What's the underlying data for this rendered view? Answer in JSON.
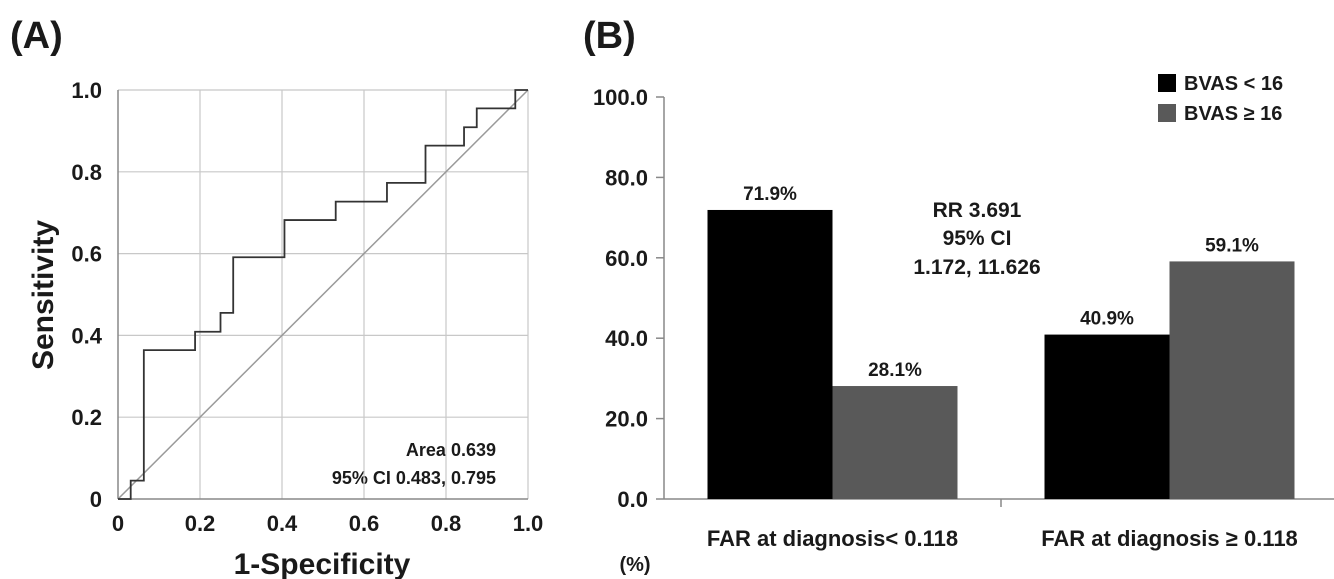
{
  "chart_data": [
    {
      "panel_label": "(A)",
      "type": "line",
      "xlabel": "1-Specificity",
      "ylabel": "Sensitivity",
      "xlim": [
        0,
        1.0
      ],
      "ylim": [
        0,
        1.0
      ],
      "x_ticks": [
        "0",
        "0.2",
        "0.4",
        "0.6",
        "0.8",
        "1.0"
      ],
      "y_ticks": [
        "0",
        "0.2",
        "0.4",
        "0.6",
        "0.8",
        "1.0"
      ],
      "grid": true,
      "series": [
        {
          "points": [
            [
              0,
              0
            ],
            [
              0.031,
              0
            ],
            [
              0.031,
              0.045
            ],
            [
              0.063,
              0.045
            ],
            [
              0.063,
              0.364
            ],
            [
              0.188,
              0.364
            ],
            [
              0.188,
              0.409
            ],
            [
              0.25,
              0.409
            ],
            [
              0.25,
              0.455
            ],
            [
              0.281,
              0.455
            ],
            [
              0.281,
              0.591
            ],
            [
              0.406,
              0.591
            ],
            [
              0.406,
              0.682
            ],
            [
              0.531,
              0.682
            ],
            [
              0.531,
              0.727
            ],
            [
              0.656,
              0.727
            ],
            [
              0.656,
              0.773
            ],
            [
              0.75,
              0.773
            ],
            [
              0.75,
              0.864
            ],
            [
              0.844,
              0.864
            ],
            [
              0.844,
              0.909
            ],
            [
              0.875,
              0.909
            ],
            [
              0.875,
              0.955
            ],
            [
              0.969,
              0.955
            ],
            [
              0.969,
              1.0
            ],
            [
              1.0,
              1.0
            ]
          ]
        }
      ],
      "reference_line": [
        [
          0,
          0
        ],
        [
          1,
          1
        ]
      ],
      "annotations": [
        "Area 0.639",
        "95% CI 0.483, 0.795"
      ]
    },
    {
      "panel_label": "(B)",
      "type": "bar",
      "unit_label": "(%)",
      "categories": [
        "FAR at diagnosis< 0.118",
        "FAR at diagnosis ≥ 0.118"
      ],
      "series": [
        {
          "name": "BVAS < 16",
          "color": "#000000",
          "values": [
            71.9,
            40.9
          ],
          "labels": [
            "71.9%",
            "40.9%"
          ]
        },
        {
          "name": "BVAS ≥ 16",
          "color": "#595959",
          "values": [
            28.1,
            59.1
          ],
          "labels": [
            "28.1%",
            "59.1%"
          ]
        }
      ],
      "ylim": [
        0,
        100
      ],
      "y_ticks": [
        "0.0",
        "20.0",
        "40.0",
        "60.0",
        "80.0",
        "100.0"
      ],
      "grid": false,
      "legend_position": "top-right",
      "annotations": [
        "RR 3.691",
        "95% CI",
        "1.172, 11.626"
      ]
    }
  ]
}
